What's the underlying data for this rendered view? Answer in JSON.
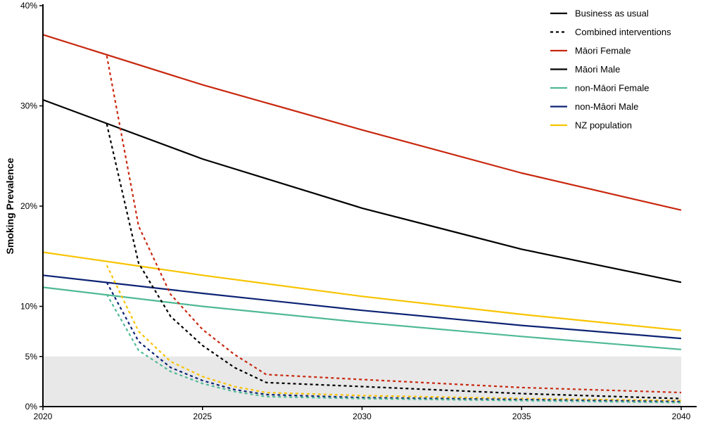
{
  "chart_data": {
    "type": "line",
    "title": "",
    "xlabel": "",
    "ylabel": "Smoking Prevalence",
    "xlim": [
      2020,
      2040
    ],
    "ylim": [
      0,
      40
    ],
    "x_ticks": [
      {
        "value": 2020,
        "label": "2020"
      },
      {
        "value": 2025,
        "label": "2025"
      },
      {
        "value": 2030,
        "label": "2030"
      },
      {
        "value": 2035,
        "label": "2035"
      },
      {
        "value": 2040,
        "label": "2040"
      }
    ],
    "y_ticks": [
      {
        "value": 0,
        "label": "0%"
      },
      {
        "value": 5,
        "label": "5%"
      },
      {
        "value": 10,
        "label": "10%"
      },
      {
        "value": 20,
        "label": "20%"
      },
      {
        "value": 30,
        "label": "30%"
      },
      {
        "value": 40,
        "label": "40%"
      }
    ],
    "target_band": {
      "from": 0,
      "to": 5,
      "color": "#e8e8e8"
    },
    "legend_position": "top-right",
    "legend": [
      {
        "label": "Business as usual",
        "color": "#000000",
        "dash": false
      },
      {
        "label": "Combined interventions",
        "color": "#000000",
        "dash": true
      },
      {
        "label": "Māori Female",
        "color": "#c8280f",
        "dash": false
      },
      {
        "label": "Māori Male",
        "color": "#000000",
        "dash": false
      },
      {
        "label": "non-Māori Female",
        "color": "#4fb995",
        "dash": false
      },
      {
        "label": "non-Māori Male",
        "color": "#0d2374",
        "dash": false
      },
      {
        "label": "NZ population",
        "color": "#f7c400",
        "dash": false
      }
    ],
    "series": [
      {
        "name": "Māori Female",
        "scenario": "Business as usual",
        "color": "#c8280f",
        "dash": false,
        "x": [
          2020,
          2025,
          2030,
          2035,
          2040
        ],
        "y": [
          37.1,
          32.1,
          27.6,
          23.3,
          19.6
        ]
      },
      {
        "name": "Māori Male",
        "scenario": "Business as usual",
        "color": "#000000",
        "dash": false,
        "x": [
          2020,
          2025,
          2030,
          2035,
          2040
        ],
        "y": [
          30.6,
          24.7,
          19.8,
          15.7,
          12.4
        ]
      },
      {
        "name": "NZ population",
        "scenario": "Business as usual",
        "color": "#f7c400",
        "dash": false,
        "x": [
          2020,
          2025,
          2030,
          2035,
          2040
        ],
        "y": [
          15.4,
          13.1,
          11.0,
          9.2,
          7.6
        ]
      },
      {
        "name": "non-Māori Male",
        "scenario": "Business as usual",
        "color": "#0d2374",
        "dash": false,
        "x": [
          2020,
          2025,
          2030,
          2035,
          2040
        ],
        "y": [
          13.1,
          11.3,
          9.6,
          8.1,
          6.8
        ]
      },
      {
        "name": "non-Māori Female",
        "scenario": "Business as usual",
        "color": "#4fb995",
        "dash": false,
        "x": [
          2020,
          2025,
          2030,
          2035,
          2040
        ],
        "y": [
          11.9,
          10.0,
          8.4,
          7.0,
          5.7
        ]
      },
      {
        "name": "Māori Female",
        "scenario": "Combined interventions",
        "color": "#c8280f",
        "dash": true,
        "x": [
          2022,
          2023,
          2024,
          2025,
          2026,
          2027,
          2030,
          2035,
          2040
        ],
        "y": [
          35.0,
          18.0,
          11.2,
          7.7,
          5.2,
          3.2,
          2.7,
          1.9,
          1.4
        ]
      },
      {
        "name": "Māori Male",
        "scenario": "Combined interventions",
        "color": "#000000",
        "dash": true,
        "x": [
          2022,
          2023,
          2024,
          2025,
          2026,
          2027,
          2030,
          2035,
          2040
        ],
        "y": [
          28.2,
          14.3,
          9.0,
          6.1,
          3.9,
          2.4,
          2.0,
          1.3,
          0.8
        ]
      },
      {
        "name": "NZ population",
        "scenario": "Combined interventions",
        "color": "#f7c400",
        "dash": true,
        "x": [
          2022,
          2023,
          2024,
          2025,
          2026,
          2027,
          2030,
          2035,
          2040
        ],
        "y": [
          14.1,
          7.5,
          4.5,
          3.0,
          2.0,
          1.4,
          1.1,
          0.8,
          0.6
        ]
      },
      {
        "name": "non-Māori Male",
        "scenario": "Combined interventions",
        "color": "#0d2374",
        "dash": true,
        "x": [
          2022,
          2023,
          2024,
          2025,
          2026,
          2027,
          2030,
          2035,
          2040
        ],
        "y": [
          12.4,
          6.5,
          3.9,
          2.6,
          1.7,
          1.2,
          0.9,
          0.7,
          0.5
        ]
      },
      {
        "name": "non-Māori Female",
        "scenario": "Combined interventions",
        "color": "#4fb995",
        "dash": true,
        "x": [
          2022,
          2023,
          2024,
          2025,
          2026,
          2027,
          2030,
          2035,
          2040
        ],
        "y": [
          11.2,
          5.6,
          3.5,
          2.3,
          1.5,
          1.0,
          0.8,
          0.6,
          0.4
        ]
      }
    ]
  }
}
